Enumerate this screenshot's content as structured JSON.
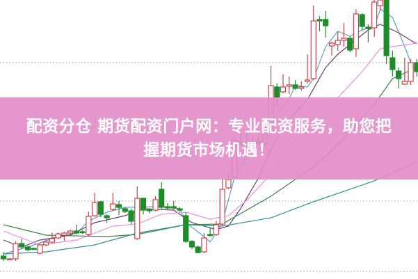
{
  "banner": {
    "line1": "配资分仓 期货配资门户网：专业配资服务，助您把",
    "line2": "握期货市场机遇！",
    "color": "#e28cc8"
  },
  "chart_data": {
    "type": "candlestick",
    "title": "",
    "xlabel": "",
    "ylabel": "",
    "grid": "dotted horizontal",
    "gridlines": [
      10,
      111,
      310
    ],
    "up_color": "#d0404a",
    "down_color": "#1e8c2a",
    "ylim": [
      0,
      400
    ],
    "ohlc": [
      [
        32,
        38,
        25,
        28
      ],
      [
        27,
        29,
        26,
        28
      ],
      [
        28,
        53,
        25,
        50
      ],
      [
        50,
        57,
        42,
        45
      ],
      [
        45,
        47,
        39,
        41
      ],
      [
        43,
        44,
        41,
        42
      ],
      [
        36,
        50,
        34,
        48
      ],
      [
        48,
        57,
        46,
        52
      ],
      [
        52,
        66,
        50,
        57
      ],
      [
        58,
        66,
        56,
        64
      ],
      [
        62,
        67,
        54,
        65
      ],
      [
        65,
        70,
        63,
        68
      ],
      [
        68,
        77,
        63,
        65
      ],
      [
        67,
        69,
        64,
        66
      ],
      [
        63,
        96,
        60,
        89
      ],
      [
        90,
        123,
        88,
        109
      ],
      [
        110,
        111,
        88,
        92
      ],
      [
        90,
        92,
        80,
        87
      ],
      [
        99,
        123,
        97,
        107
      ],
      [
        106,
        111,
        91,
        102
      ],
      [
        100,
        102,
        94,
        96
      ],
      [
        97,
        100,
        78,
        82
      ],
      [
        57,
        132,
        55,
        115
      ],
      [
        115,
        116,
        92,
        98
      ],
      [
        99,
        101,
        93,
        97
      ],
      [
        98,
        118,
        96,
        113
      ],
      [
        128,
        138,
        100,
        102
      ],
      [
        103,
        108,
        99,
        101
      ],
      [
        103,
        111,
        99,
        101
      ],
      [
        100,
        102,
        96,
        98
      ],
      [
        90,
        95,
        51,
        53
      ],
      [
        53,
        55,
        42,
        45
      ],
      [
        45,
        47,
        36,
        37
      ],
      [
        38,
        65,
        36,
        58
      ],
      [
        63,
        72,
        60,
        62
      ],
      [
        63,
        82,
        61,
        77
      ],
      [
        78,
        145,
        76,
        128
      ],
      [
        130,
        150,
        128,
        142
      ],
      [
        145,
        205,
        143,
        198
      ],
      [
        196,
        210,
        190,
        194
      ],
      [
        194,
        212,
        190,
        192
      ],
      [
        194,
        205,
        188,
        192
      ],
      [
        196,
        215,
        192,
        194
      ],
      [
        193,
        212,
        191,
        207
      ],
      [
        210,
        305,
        208,
        277
      ],
      [
        275,
        280,
        247,
        260
      ],
      [
        268,
        293,
        266,
        275
      ],
      [
        276,
        290,
        265,
        278
      ],
      [
        278,
        285,
        271,
        273
      ],
      [
        273,
        283,
        270,
        275
      ],
      [
        283,
        322,
        280,
        285
      ],
      [
        287,
        392,
        285,
        370
      ],
      [
        372,
        377,
        355,
        370
      ],
      [
        372,
        384,
        346,
        363
      ],
      [
        334,
        340,
        320,
        338
      ],
      [
        336,
        355,
        327,
        342
      ],
      [
        342,
        367,
        333,
        345
      ],
      [
        345,
        348,
        325,
        328
      ],
      [
        330,
        387,
        318,
        380
      ],
      [
        379,
        381,
        356,
        362
      ],
      [
        361,
        365,
        339,
        359
      ],
      [
        360,
        400,
        347,
        397
      ],
      [
        392,
        405,
        385,
        400
      ],
      [
        400,
        402,
        308,
        320
      ],
      [
        317,
        327,
        290,
        300
      ],
      [
        298,
        303,
        273,
        287
      ],
      [
        279,
        317,
        278,
        283
      ],
      [
        283,
        315,
        278,
        310
      ],
      [
        310,
        315,
        290,
        297
      ]
    ],
    "moving_averages": [
      {
        "color": "#5aa3b8",
        "points": [
          [
            0,
            35
          ],
          [
            4,
            45
          ],
          [
            9,
            60
          ],
          [
            12,
            65
          ],
          [
            14,
            82
          ],
          [
            17,
            95
          ],
          [
            20,
            102
          ],
          [
            26,
            103
          ],
          [
            29,
            100
          ],
          [
            30,
            80
          ],
          [
            33,
            60
          ],
          [
            34,
            52
          ],
          [
            36,
            80
          ],
          [
            38,
            145
          ],
          [
            41,
            190
          ],
          [
            44,
            225
          ],
          [
            47,
            258
          ],
          [
            48,
            277
          ],
          [
            50,
            275
          ],
          [
            51,
            287
          ],
          [
            53,
            333
          ],
          [
            55,
            355
          ],
          [
            57,
            348
          ],
          [
            59,
            357
          ],
          [
            61,
            362
          ],
          [
            62,
            387
          ],
          [
            64,
            375
          ],
          [
            66,
            333
          ],
          [
            67,
            310
          ],
          [
            68,
            297
          ]
        ]
      },
      {
        "color": "#6e3a70",
        "points": [
          [
            0,
            55
          ],
          [
            3,
            45
          ],
          [
            6,
            55
          ],
          [
            11,
            62
          ],
          [
            15,
            80
          ],
          [
            20,
            90
          ],
          [
            23,
            100
          ],
          [
            28,
            98
          ],
          [
            31,
            80
          ],
          [
            35,
            70
          ],
          [
            37,
            75
          ],
          [
            39,
            100
          ],
          [
            42,
            145
          ],
          [
            44,
            185
          ],
          [
            46,
            220
          ],
          [
            50,
            257
          ],
          [
            53,
            303
          ],
          [
            55,
            322
          ],
          [
            58,
            343
          ],
          [
            60,
            357
          ],
          [
            62,
            365
          ],
          [
            65,
            353
          ],
          [
            67,
            342
          ],
          [
            68,
            337
          ]
        ]
      },
      {
        "color": "#e58ee0",
        "points": [
          [
            0,
            68
          ],
          [
            6,
            48
          ],
          [
            12,
            55
          ],
          [
            18,
            75
          ],
          [
            22,
            78
          ],
          [
            26,
            92
          ],
          [
            30,
            95
          ],
          [
            34,
            85
          ],
          [
            37,
            90
          ],
          [
            40,
            112
          ],
          [
            44,
            150
          ],
          [
            48,
            200
          ],
          [
            51,
            240
          ],
          [
            54,
            250
          ],
          [
            59,
            297
          ],
          [
            62,
            330
          ],
          [
            64,
            333
          ],
          [
            68,
            338
          ]
        ]
      },
      {
        "color": "#3f7f45",
        "points": [
          [
            0,
            77
          ],
          [
            7,
            62
          ],
          [
            17,
            60
          ],
          [
            22,
            63
          ],
          [
            30,
            77
          ],
          [
            36,
            78
          ],
          [
            44,
            118
          ],
          [
            51,
            160
          ],
          [
            56,
            200
          ],
          [
            61,
            250
          ],
          [
            64,
            287
          ],
          [
            68,
            303
          ]
        ]
      },
      {
        "color": "#2f8f90",
        "points": [
          [
            0,
            35
          ],
          [
            7,
            38
          ],
          [
            15,
            48
          ],
          [
            22,
            65
          ],
          [
            30,
            77
          ],
          [
            36,
            75
          ],
          [
            44,
            87
          ],
          [
            51,
            110
          ],
          [
            61,
            140
          ],
          [
            68,
            167
          ]
        ]
      }
    ]
  }
}
